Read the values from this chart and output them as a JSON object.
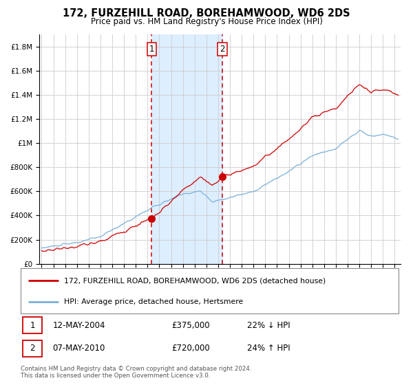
{
  "title": "172, FURZEHILL ROAD, BOREHAMWOOD, WD6 2DS",
  "subtitle": "Price paid vs. HM Land Registry's House Price Index (HPI)",
  "legend_line1": "172, FURZEHILL ROAD, BOREHAMWOOD, WD6 2DS (detached house)",
  "legend_line2": "HPI: Average price, detached house, Hertsmere",
  "table_rows": [
    {
      "num": "1",
      "date": "12-MAY-2004",
      "price": "£375,000",
      "change": "22% ↓ HPI"
    },
    {
      "num": "2",
      "date": "07-MAY-2010",
      "price": "£720,000",
      "change": "24% ↑ HPI"
    }
  ],
  "footnote": "Contains HM Land Registry data © Crown copyright and database right 2024.\nThis data is licensed under the Open Government Licence v3.0.",
  "sale1_year": 2004.36,
  "sale1_price": 375000,
  "sale2_year": 2010.35,
  "sale2_price": 720000,
  "hpi_color": "#7ab0d8",
  "price_color": "#cc0000",
  "dot_color": "#cc0000",
  "shade_color": "#ddeeff",
  "vline_color": "#cc0000",
  "grid_color": "#cccccc",
  "background_color": "#ffffff",
  "ylim_max": 1900000,
  "xlim_start": 1994.8,
  "xlim_end": 2025.5
}
